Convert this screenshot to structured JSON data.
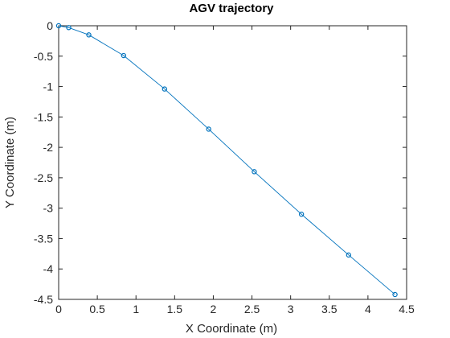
{
  "chart_data": {
    "type": "line",
    "title": "AGV trajectory",
    "xlabel": "X Coordinate (m)",
    "ylabel": "Y Coordinate (m)",
    "xlim": [
      0,
      4.5
    ],
    "ylim": [
      -4.5,
      0
    ],
    "xticks": [
      0,
      0.5,
      1,
      1.5,
      2,
      2.5,
      3,
      3.5,
      4,
      4.5
    ],
    "yticks": [
      0,
      -0.5,
      -1,
      -1.5,
      -2,
      -2.5,
      -3,
      -3.5,
      -4,
      -4.5
    ],
    "xtick_labels": [
      "0",
      "0.5",
      "1",
      "1.5",
      "2",
      "2.5",
      "3",
      "3.5",
      "4",
      "4.5"
    ],
    "ytick_labels": [
      "0",
      "-0.5",
      "-1",
      "-1.5",
      "-2",
      "-2.5",
      "-3",
      "-3.5",
      "-4",
      "-4.5"
    ],
    "grid": false,
    "marker": "circle",
    "line_color": "#0072BD",
    "marker_color": "#0072BD",
    "series": [
      {
        "x": [
          0,
          0.13,
          0.39,
          0.84,
          1.37,
          1.94,
          2.53,
          3.14,
          3.75,
          4.35
        ],
        "y": [
          0,
          -0.03,
          -0.15,
          -0.49,
          -1.04,
          -1.7,
          -2.4,
          -3.1,
          -3.77,
          -4.42
        ]
      }
    ]
  }
}
